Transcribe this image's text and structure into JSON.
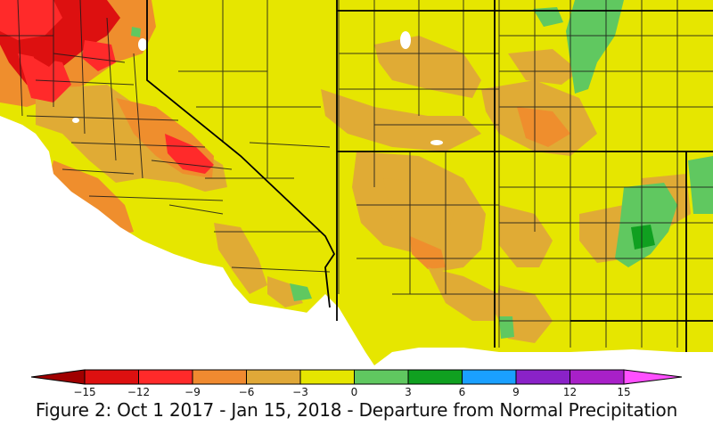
{
  "colors": {
    "ocean": "#ffffff",
    "base": "#e6e600",
    "boundary": "#1a1a1a"
  },
  "legend": {
    "classes": [
      {
        "color": "#a00000"
      },
      {
        "color": "#dd1010"
      },
      {
        "color": "#ff2a2a"
      },
      {
        "color": "#f08a30"
      },
      {
        "color": "#e0a838"
      },
      {
        "color": "#e6e600"
      },
      {
        "color": "#60c860"
      },
      {
        "color": "#10a020"
      },
      {
        "color": "#1aa0ff"
      },
      {
        "color": "#8a22c8"
      },
      {
        "color": "#a820c8"
      },
      {
        "color": "#ff50ff"
      }
    ],
    "ticks": [
      "−15",
      "−12",
      "−9",
      "−6",
      "−3",
      "0",
      "3",
      "6",
      "9",
      "12",
      "15"
    ]
  },
  "caption": "Figure 2: Oct 1 2017 - Jan 15, 2018 - Departure from Normal Precipitation"
}
